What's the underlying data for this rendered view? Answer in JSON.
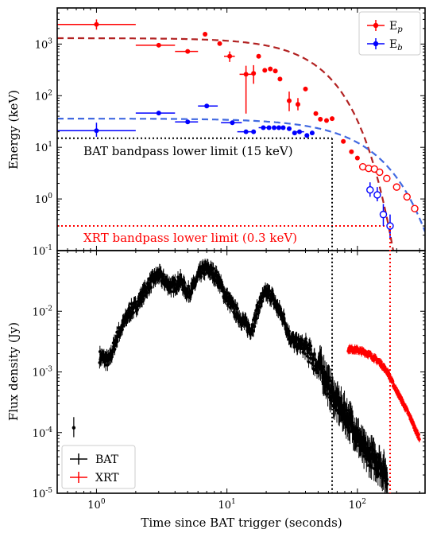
{
  "chart_data": [
    {
      "type": "scatter",
      "panel": "top",
      "xscale": "log",
      "yscale": "log",
      "xlim": [
        0.5,
        330
      ],
      "ylim": [
        0.1,
        5000
      ],
      "ylabel": "Energy (keV)",
      "y_ticks": [
        {
          "v": 0.1,
          "label": "10^-1"
        },
        {
          "v": 1,
          "label": "10^0"
        },
        {
          "v": 10,
          "label": "10^1"
        },
        {
          "v": 100,
          "label": "10^2"
        },
        {
          "v": 1000,
          "label": "10^3"
        }
      ],
      "legend": {
        "placement": "top-right",
        "entries": [
          {
            "label": "E",
            "sub": "p",
            "color": "#ff0000"
          },
          {
            "label": "E",
            "sub": "b",
            "color": "#0000ff"
          }
        ]
      },
      "series": [
        {
          "name": "Ep",
          "color": "#ff0000",
          "points": [
            {
              "x": 1.0,
              "y": 2400,
              "xerr": [
                0.5,
                2.0
              ],
              "yerr": [
                1900,
                3000
              ]
            },
            {
              "x": 3.0,
              "y": 950,
              "xerr": [
                2.0,
                4.0
              ]
            },
            {
              "x": 5.0,
              "y": 720,
              "xerr": [
                4.0,
                6.0
              ]
            },
            {
              "x": 6.8,
              "y": 1550
            },
            {
              "x": 8.8,
              "y": 1020
            },
            {
              "x": 10.5,
              "y": 580,
              "xerr": [
                9.5,
                11.5
              ],
              "yerr": [
                450,
                720
              ]
            },
            {
              "x": 14.0,
              "y": 260,
              "xerr": [
                12.5,
                16.5
              ],
              "yerr": [
                45,
                380
              ]
            },
            {
              "x": 16.0,
              "y": 270,
              "yerr": [
                170,
                390
              ]
            },
            {
              "x": 17.5,
              "y": 580
            },
            {
              "x": 19.5,
              "y": 310
            },
            {
              "x": 21.5,
              "y": 330
            },
            {
              "x": 23.5,
              "y": 300
            },
            {
              "x": 25.5,
              "y": 210
            },
            {
              "x": 30.0,
              "y": 80,
              "yerr": [
                50,
                120
              ]
            },
            {
              "x": 35.0,
              "y": 68,
              "yerr": [
                52,
                90
              ]
            },
            {
              "x": 40.0,
              "y": 135
            },
            {
              "x": 48.0,
              "y": 45
            },
            {
              "x": 52.0,
              "y": 35
            },
            {
              "x": 58.0,
              "y": 33
            },
            {
              "x": 64.0,
              "y": 36
            },
            {
              "x": 78.0,
              "y": 13
            },
            {
              "x": 90.0,
              "y": 8.2
            },
            {
              "x": 100.0,
              "y": 6.2
            }
          ],
          "open_points": [
            {
              "x": 110,
              "y": 4.2
            },
            {
              "x": 122,
              "y": 3.9
            },
            {
              "x": 135,
              "y": 3.8
            },
            {
              "x": 148,
              "y": 3.3
            },
            {
              "x": 168,
              "y": 2.5
            },
            {
              "x": 200,
              "y": 1.7
            },
            {
              "x": 240,
              "y": 1.1
            },
            {
              "x": 275,
              "y": 0.65
            }
          ]
        },
        {
          "name": "Eb",
          "color": "#0000ff",
          "points": [
            {
              "x": 1.0,
              "y": 21,
              "xerr": [
                0.5,
                2.0
              ],
              "yerr": [
                16,
                30
              ]
            },
            {
              "x": 3.0,
              "y": 46,
              "xerr": [
                2.0,
                4.0
              ]
            },
            {
              "x": 5.0,
              "y": 31,
              "xerr": [
                4.0,
                6.0
              ]
            },
            {
              "x": 7.0,
              "y": 63,
              "xerr": [
                6.0,
                8.5
              ]
            },
            {
              "x": 11.0,
              "y": 30,
              "xerr": [
                9.0,
                13.0
              ]
            },
            {
              "x": 14.0,
              "y": 20,
              "xerr": [
                12.0,
                16.0
              ]
            },
            {
              "x": 16.0,
              "y": 20
            },
            {
              "x": 19.0,
              "y": 24,
              "xerr": [
                17.5,
                20.5
              ]
            },
            {
              "x": 21.0,
              "y": 24
            },
            {
              "x": 23.0,
              "y": 24
            },
            {
              "x": 25.0,
              "y": 24
            },
            {
              "x": 27.0,
              "y": 24
            },
            {
              "x": 30.0,
              "y": 23
            },
            {
              "x": 33.0,
              "y": 19
            },
            {
              "x": 36.0,
              "y": 20,
              "xerr": [
                34.0,
                39.0
              ]
            },
            {
              "x": 41.0,
              "y": 17
            },
            {
              "x": 45.0,
              "y": 19
            }
          ],
          "open_points": [
            {
              "x": 125,
              "y": 1.5,
              "yerr": [
                1.1,
                2.1
              ]
            },
            {
              "x": 142,
              "y": 1.2,
              "yerr": [
                0.9,
                1.7
              ]
            },
            {
              "x": 158,
              "y": 0.5,
              "yerr": [
                0.3,
                0.8
              ]
            },
            {
              "x": 178,
              "y": 0.3,
              "yerr": [
                0.17,
                0.5
              ]
            }
          ]
        }
      ],
      "model_curves": [
        {
          "name": "Ep model",
          "color": "#b22222",
          "style": "dashed",
          "A": 1300,
          "tau": 42,
          "k": 1.5
        },
        {
          "name": "Eb model",
          "color": "#4169e1",
          "style": "dashed",
          "A": 36,
          "tau": 95,
          "k": 1.3
        }
      ],
      "reference_lines": [
        {
          "name": "BAT bandpass lower limit",
          "value": 15,
          "color": "#000000",
          "style": "dotted",
          "x_end": 64,
          "label": "BAT bandpass lower limit (15 keV)"
        },
        {
          "name": "XRT bandpass lower limit",
          "value": 0.3,
          "color": "#ff0000",
          "style": "dotted",
          "x_end": 178,
          "label": "XRT bandpass lower limit (0.3 keV)"
        }
      ],
      "vertical_lines": [
        {
          "x": 64,
          "color": "#000000",
          "style": "dotted"
        },
        {
          "x": 178,
          "color": "#ff0000",
          "style": "dotted"
        }
      ]
    },
    {
      "type": "scatter",
      "panel": "bottom",
      "xscale": "log",
      "yscale": "log",
      "xlim": [
        0.5,
        330
      ],
      "ylim": [
        1e-05,
        0.1
      ],
      "xlabel": "Time since BAT trigger (seconds)",
      "ylabel": "Flux density (Jy)",
      "x_ticks": [
        {
          "v": 1,
          "label": "10^0"
        },
        {
          "v": 10,
          "label": "10^1"
        },
        {
          "v": 100,
          "label": "10^2"
        }
      ],
      "y_ticks": [
        {
          "v": 1e-05,
          "label": "10^-5"
        },
        {
          "v": 0.0001,
          "label": "10^-4"
        },
        {
          "v": 0.001,
          "label": "10^-3"
        },
        {
          "v": 0.01,
          "label": "10^-2"
        }
      ],
      "legend": {
        "placement": "bottom-left",
        "entries": [
          {
            "label": "BAT",
            "color": "#000000"
          },
          {
            "label": "XRT",
            "color": "#ff0000"
          }
        ]
      },
      "series": [
        {
          "name": "BAT",
          "color": "#000000",
          "density": 2.2,
          "anchors": [
            [
              0.67,
              0.00012
            ],
            [
              1.05,
              0.0018
            ],
            [
              1.25,
              0.0015
            ],
            [
              1.45,
              0.004
            ],
            [
              1.6,
              0.006
            ],
            [
              1.8,
              0.01
            ],
            [
              2.0,
              0.012
            ],
            [
              2.3,
              0.02
            ],
            [
              2.6,
              0.03
            ],
            [
              3.0,
              0.04
            ],
            [
              3.4,
              0.03
            ],
            [
              3.8,
              0.025
            ],
            [
              4.4,
              0.032
            ],
            [
              5.0,
              0.02
            ],
            [
              5.5,
              0.025
            ],
            [
              6.3,
              0.045
            ],
            [
              7.0,
              0.05
            ],
            [
              7.6,
              0.045
            ],
            [
              8.5,
              0.035
            ],
            [
              9.5,
              0.02
            ],
            [
              11.0,
              0.012
            ],
            [
              12.5,
              0.008
            ],
            [
              14.0,
              0.006
            ],
            [
              15.0,
              0.005
            ],
            [
              16.0,
              0.006
            ],
            [
              17.0,
              0.01
            ],
            [
              18.5,
              0.016
            ],
            [
              20.0,
              0.02
            ],
            [
              22.0,
              0.018
            ],
            [
              24.0,
              0.012
            ],
            [
              27.0,
              0.008
            ],
            [
              30.0,
              0.004
            ],
            [
              33.0,
              0.003
            ],
            [
              37.0,
              0.0028
            ],
            [
              42.0,
              0.0022
            ],
            [
              47.0,
              0.0015
            ],
            [
              52.0,
              0.0012
            ],
            [
              57.0,
              0.0008
            ],
            [
              62.0,
              0.0005
            ],
            [
              70.0,
              0.0003
            ],
            [
              78.0,
              0.00022
            ],
            [
              88.0,
              0.00015
            ],
            [
              98.0,
              0.0001
            ],
            [
              112.0,
              5e-05
            ],
            [
              128.0,
              4e-05
            ],
            [
              148.0,
              3e-05
            ],
            [
              170.0,
              1.8e-05
            ]
          ]
        },
        {
          "name": "XRT",
          "color": "#ff0000",
          "density": 2.6,
          "anchors": [
            [
              85,
              0.0024
            ],
            [
              100,
              0.0023
            ],
            [
              115,
              0.0021
            ],
            [
              130,
              0.0018
            ],
            [
              150,
              0.0014
            ],
            [
              170,
              0.001
            ],
            [
              190,
              0.0006
            ],
            [
              210,
              0.0004
            ],
            [
              235,
              0.00025
            ],
            [
              260,
              0.00016
            ],
            [
              285,
              0.0001
            ],
            [
              300,
              8e-05
            ]
          ]
        }
      ]
    }
  ]
}
